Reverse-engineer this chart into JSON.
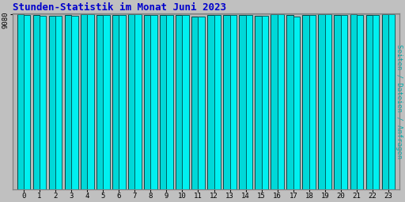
{
  "title": "Stunden-Statistik im Monat Juni 2023",
  "ylabel": "Seiten / Dateien / Anfragen",
  "background_color": "#c0c0c0",
  "plot_bg_color": "#b8b8b8",
  "bar_color1": "#00d8d8",
  "bar_color2": "#00f0f0",
  "bar_edge1": "#004444",
  "bar_edge2": "#006060",
  "title_color": "#0000cc",
  "ylabel_color": "#00aaaa",
  "hours": [
    0,
    1,
    2,
    3,
    4,
    5,
    6,
    7,
    8,
    9,
    10,
    11,
    12,
    13,
    14,
    15,
    16,
    17,
    18,
    19,
    20,
    21,
    22,
    23
  ],
  "values1": [
    9058,
    9020,
    8985,
    9018,
    9070,
    9050,
    9052,
    9075,
    9042,
    9048,
    9028,
    8960,
    9050,
    9028,
    9022,
    9015,
    9090,
    9045,
    9032,
    9062,
    9055,
    9060,
    9040,
    9090
  ],
  "values2": [
    9052,
    9015,
    8980,
    9012,
    9075,
    9045,
    9048,
    9068,
    9038,
    9044,
    9022,
    8940,
    9045,
    9022,
    9018,
    9010,
    9095,
    8972,
    9028,
    9058,
    9048,
    9055,
    9032,
    9085
  ],
  "ylim": [
    0,
    9120
  ],
  "yticks": [
    9080
  ],
  "ytick_labels": [
    "9080"
  ]
}
